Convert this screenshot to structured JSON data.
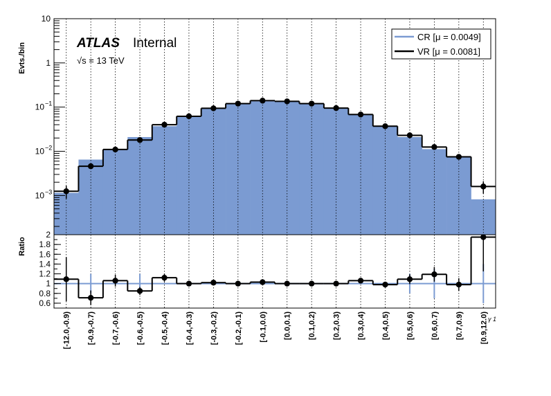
{
  "chart_data": {
    "type": "bar",
    "branding": {
      "experiment": "ATLAS",
      "status": "Internal",
      "energy": "√s = 13 TeV"
    },
    "x_axis_symbol": "γ 1",
    "categories": [
      "[-12.0,-0.9)",
      "[-0.9,-0.7)",
      "[-0.7,-0.6)",
      "[-0.6,-0.5)",
      "[-0.5,-0.4)",
      "[-0.4,-0.3)",
      "[-0.3,-0.2)",
      "[-0.2,-0.1)",
      "[-0.1,0.0)",
      "[0.0,0.1)",
      "[0.1,0.2)",
      "[0.2,0.3)",
      "[0.3,0.4)",
      "[0.4,0.5)",
      "[0.5,0.6)",
      "[0.6,0.7)",
      "[0.7,0.9)",
      "[0.9,12.0)"
    ],
    "top_panel": {
      "ylabel": "Evts./bin",
      "yscale": "log",
      "ylim": [
        0.00013,
        10
      ],
      "yticks": [
        {
          "value": 10,
          "label": "10",
          "sup": ""
        },
        {
          "value": 1,
          "label": "1",
          "sup": ""
        },
        {
          "value": 0.1,
          "label": "10",
          "sup": "−1"
        },
        {
          "value": 0.01,
          "label": "10",
          "sup": "−2"
        },
        {
          "value": 0.001,
          "label": "10",
          "sup": "−3"
        }
      ],
      "series": [
        {
          "name": "CR [μ = 0.0049]",
          "kind": "filled-histogram",
          "color": "#7b9bd2",
          "values": [
            0.00115,
            0.0065,
            0.0112,
            0.021,
            0.037,
            0.06,
            0.092,
            0.12,
            0.135,
            0.135,
            0.12,
            0.095,
            0.067,
            0.038,
            0.021,
            0.0112,
            0.0076,
            0.00082
          ]
        },
        {
          "name": "VR [μ = 0.0081]",
          "kind": "line-histogram-with-points",
          "color": "#000000",
          "values": [
            0.00125,
            0.0046,
            0.011,
            0.018,
            0.04,
            0.062,
            0.094,
            0.12,
            0.14,
            0.135,
            0.12,
            0.095,
            0.068,
            0.037,
            0.023,
            0.0125,
            0.0075,
            0.0016
          ],
          "errors": [
            0.0004,
            0.0003,
            0.0006,
            0.0009,
            0.0015,
            0.002,
            0.003,
            0.004,
            0.004,
            0.004,
            0.004,
            0.003,
            0.003,
            0.002,
            0.0012,
            0.0008,
            0.0005,
            0.0005
          ]
        }
      ]
    },
    "ratio_panel": {
      "ylabel": "Ratio",
      "ylim": [
        0.5,
        2.0
      ],
      "yticks": [
        0.6,
        0.8,
        1,
        1.2,
        1.4,
        1.6,
        1.8,
        2
      ],
      "ytick_labels": [
        "0.6",
        "0.8",
        "1",
        "1.2",
        "1.4",
        "1.6",
        "1.8",
        "2"
      ],
      "cr_reference": 1.0,
      "cr_errors": [
        0.0,
        0.2,
        0.0,
        0.2,
        0.0,
        0.0,
        0.0,
        0.0,
        0.0,
        0.0,
        0.0,
        0.0,
        0.0,
        0.0,
        0.2,
        0.3,
        0.0,
        0.4
      ],
      "values": [
        1.09,
        0.71,
        1.06,
        0.85,
        1.12,
        1.0,
        1.02,
        1.0,
        1.03,
        1.0,
        1.0,
        1.0,
        1.06,
        0.98,
        1.09,
        1.19,
        0.98,
        1.95
      ],
      "errors": [
        0.45,
        0.15,
        0.12,
        0.08,
        0.08,
        0.03,
        0.03,
        0.02,
        0.03,
        0.02,
        0.02,
        0.03,
        0.04,
        0.06,
        0.1,
        0.15,
        0.13,
        0.7
      ]
    },
    "legend": {
      "position": "top-right"
    },
    "grid": {
      "vertical_dotted_at_bin_centers": true
    }
  }
}
